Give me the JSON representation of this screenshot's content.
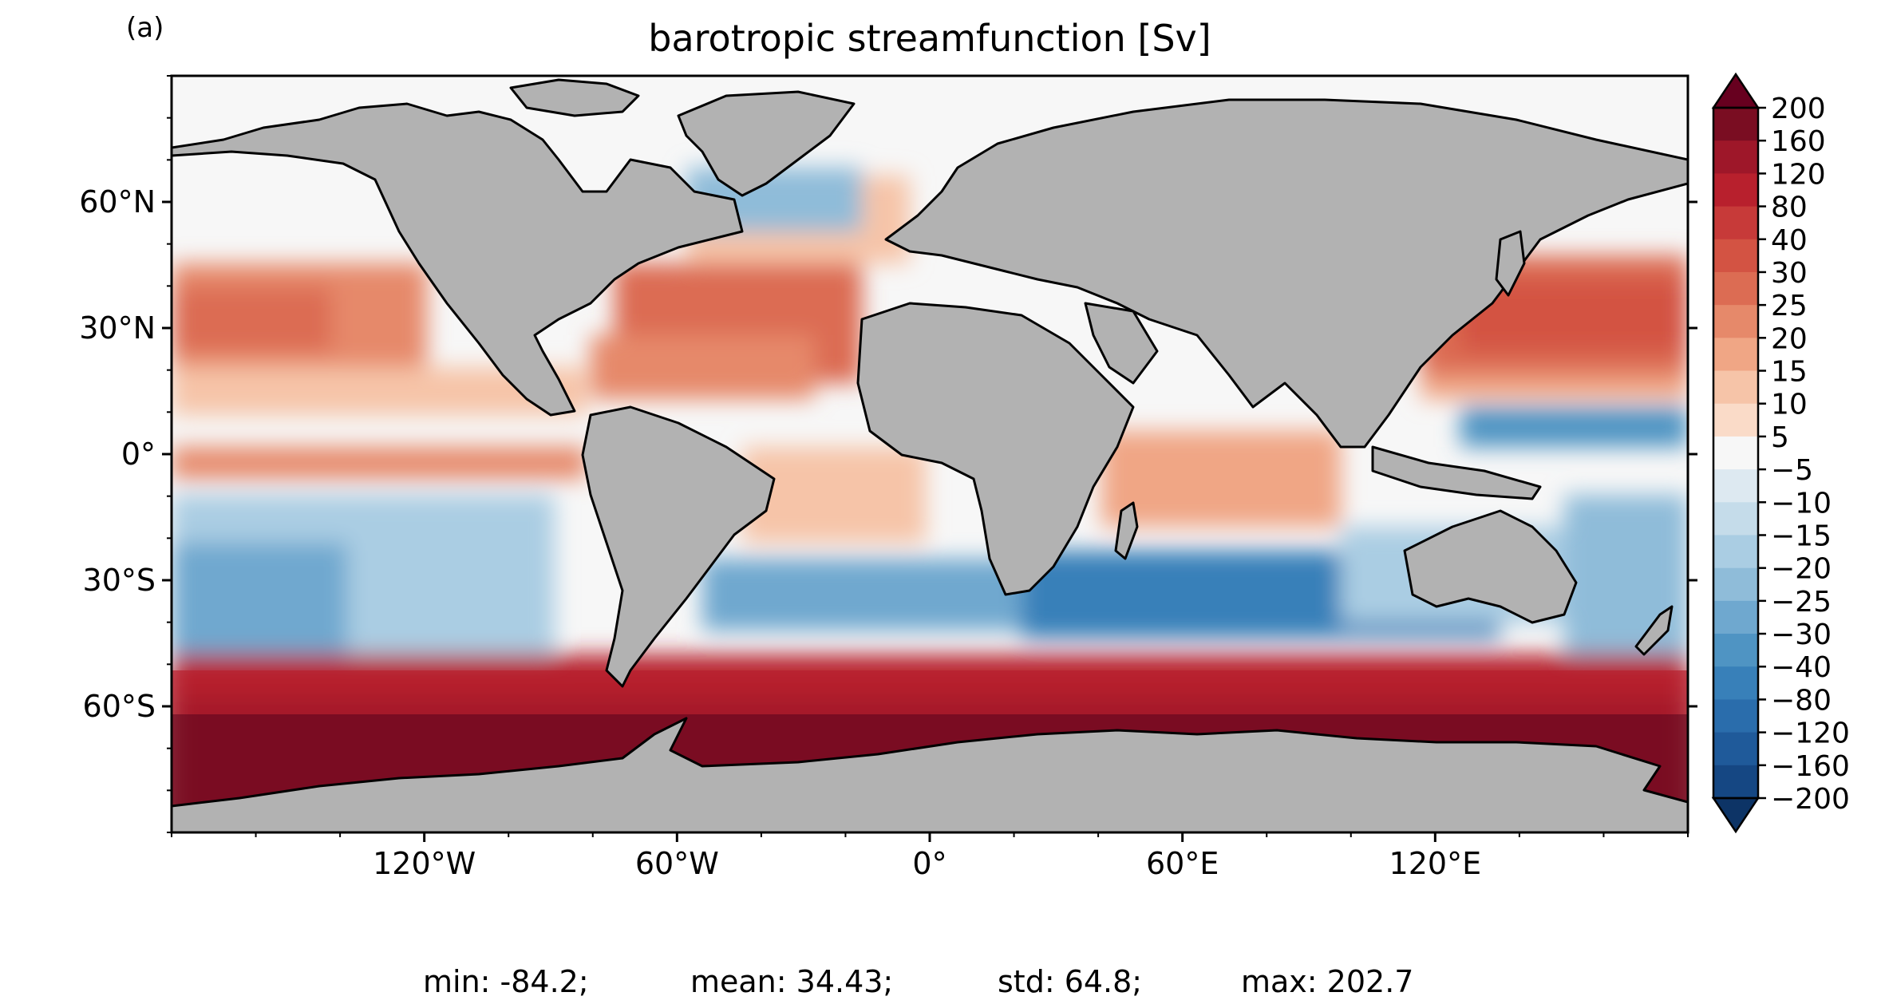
{
  "panel_label": "(a)",
  "title": "barotropic streamfunction [Sv]",
  "stats_line": {
    "min": "min: -84.2;",
    "mean": "mean: 34.43;",
    "std": "std: 64.8;",
    "max": "max: 202.7"
  },
  "map": {
    "projection": "plate carree",
    "lon_range": [
      -180,
      180
    ],
    "lat_range": [
      -90,
      90
    ],
    "lon_ticks": [
      {
        "value": -120,
        "label": "120°W"
      },
      {
        "value": -60,
        "label": "60°W"
      },
      {
        "value": 0,
        "label": "0°"
      },
      {
        "value": 60,
        "label": "60°E"
      },
      {
        "value": 120,
        "label": "120°E"
      }
    ],
    "lat_ticks": [
      {
        "value": 60,
        "label": "60°N"
      },
      {
        "value": 30,
        "label": "30°N"
      },
      {
        "value": 0,
        "label": "0°"
      },
      {
        "value": -30,
        "label": "30°S"
      },
      {
        "value": -60,
        "label": "60°S"
      }
    ],
    "land_color": "#b2b2b2",
    "coastline_color": "#000000"
  },
  "colorbar": {
    "orientation": "vertical",
    "extend": "both",
    "tick_labels": [
      "200",
      "160",
      "120",
      "80",
      "40",
      "30",
      "25",
      "20",
      "15",
      "10",
      "5",
      "−5",
      "−10",
      "−15",
      "−20",
      "−25",
      "−30",
      "−40",
      "−80",
      "−120",
      "−160",
      "−200"
    ],
    "bin_colors": [
      "#7a0d22",
      "#9e1729",
      "#b8202d",
      "#c73a39",
      "#d35343",
      "#dc6c53",
      "#e6896a",
      "#f0a685",
      "#f6c4a8",
      "#fadbc8",
      "#f7f7f7",
      "#dde9f1",
      "#c5dcea",
      "#aacde3",
      "#8fbcd9",
      "#6fa8cf",
      "#4f94c3",
      "#3880b9",
      "#2a6dac",
      "#1f5a9a",
      "#154783"
    ],
    "over_color": "#67001f",
    "under_color": "#0d3466"
  }
}
